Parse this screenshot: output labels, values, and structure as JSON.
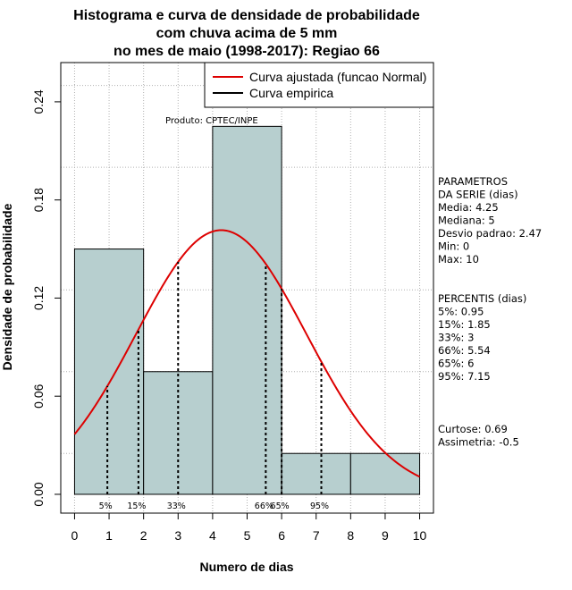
{
  "chart_data": {
    "type": "bar",
    "title_lines": [
      "Histograma e curva de densidade de probabilidade",
      "com chuva acima de 5 mm",
      "no mes de maio (1998-2017): Regiao 66"
    ],
    "xlabel": "Numero de dias",
    "ylabel": "Densidade de probabilidade",
    "xlim": [
      -0.4,
      10.4
    ],
    "ylim": [
      -0.0115,
      0.264
    ],
    "x_ticks": [
      0,
      1,
      2,
      3,
      4,
      5,
      6,
      7,
      8,
      9,
      10
    ],
    "x_tick_labels": [
      "0",
      "1",
      "2",
      "3",
      "4",
      "5",
      "6",
      "7",
      "8",
      "9",
      "10"
    ],
    "y_ticks": [
      0.0,
      0.06,
      0.12,
      0.18,
      0.24
    ],
    "y_tick_labels": [
      "0.00",
      "0.06",
      "0.12",
      "0.18",
      "0.24"
    ],
    "grid_x": [
      0,
      1,
      2,
      3,
      4,
      5,
      6,
      7,
      8,
      9,
      10
    ],
    "grid_y": [
      0.025,
      0.075,
      0.125,
      0.2,
      0.25
    ],
    "bins": [
      {
        "from": 0,
        "to": 2,
        "density": 0.15
      },
      {
        "from": 2,
        "to": 4,
        "density": 0.075
      },
      {
        "from": 4,
        "to": 6,
        "density": 0.225
      },
      {
        "from": 6,
        "to": 8,
        "density": 0.025
      },
      {
        "from": 8,
        "to": 10,
        "density": 0.025
      }
    ],
    "normal_fit": {
      "mean": 4.25,
      "sd": 2.47,
      "x_from": 0,
      "x_to": 10
    },
    "percentile_lines": [
      {
        "label": "5%",
        "x": 0.95
      },
      {
        "label": "15%",
        "x": 1.85
      },
      {
        "label": "33%",
        "x": 3
      },
      {
        "label": "66%",
        "x": 5.54
      },
      {
        "label": "65%",
        "x": 6
      },
      {
        "label": "95%",
        "x": 7.15
      }
    ],
    "legend": {
      "position": "top-right",
      "entries": [
        {
          "label": "Curva ajustada (funcao Normal)",
          "color": "#dd0000"
        },
        {
          "label": "Curva empirica",
          "color": "#000000"
        }
      ]
    },
    "annotation": "Produto: CPTEC/INPE",
    "colors": {
      "bar_fill": "#b7cfcf",
      "bar_edge": "#000000",
      "curve": "#dd0000",
      "grid": "#b0b0b0"
    }
  },
  "side_panel": {
    "params_lines": [
      "PARAMETROS",
      "DA SERIE (dias)",
      "  Media: 4.25",
      "  Mediana: 5",
      "  Desvio padrao: 2.47",
      "  Min: 0",
      "  Max: 10"
    ],
    "percentis_lines": [
      "PERCENTIS (dias)",
      "  5%: 0.95",
      "  15%: 1.85",
      "  33%: 3",
      "  66%: 5.54",
      "  65%: 6",
      "  95%: 7.15"
    ],
    "stats_lines": [
      "    Curtose: 0.69",
      "  Assimetria: -0.5"
    ]
  }
}
